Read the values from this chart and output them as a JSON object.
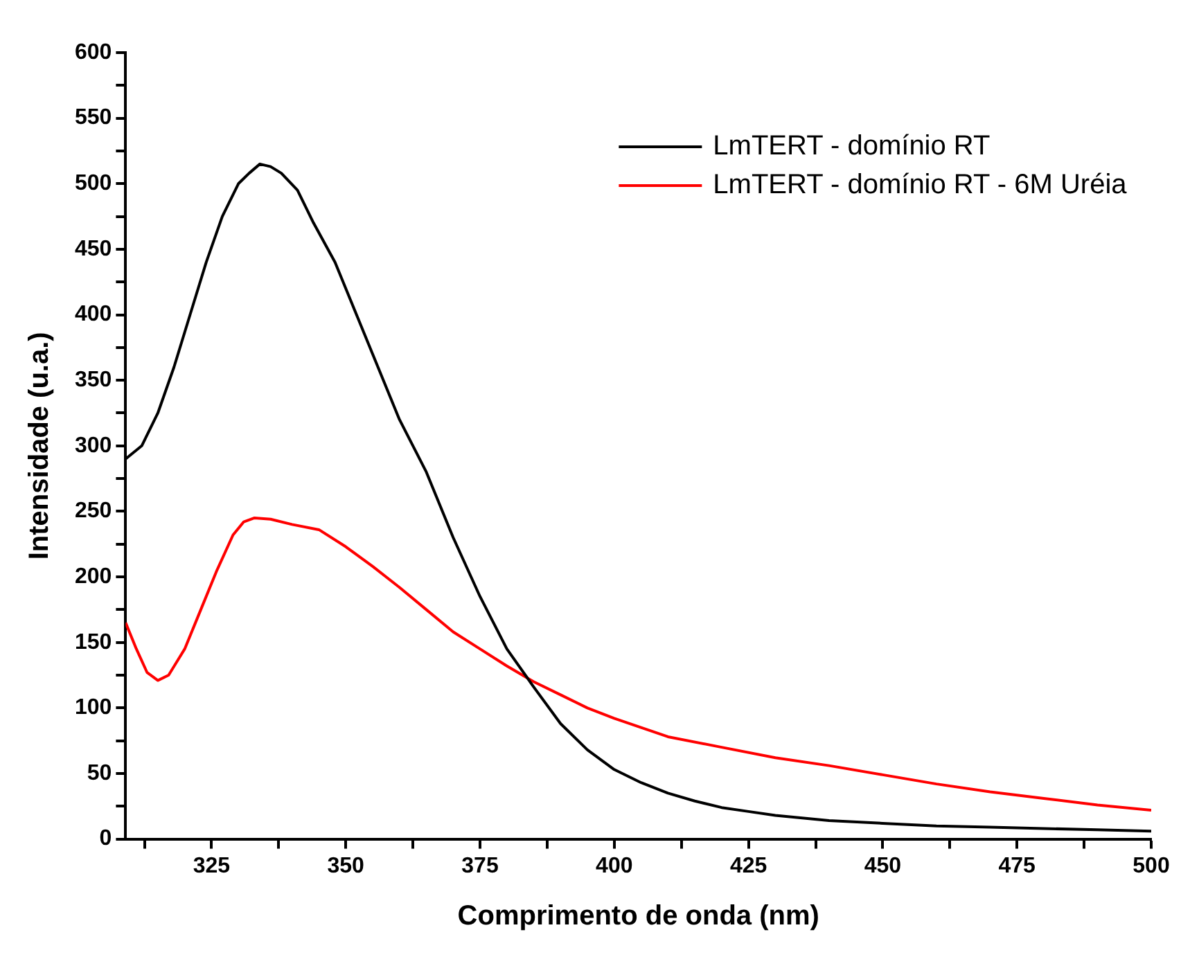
{
  "chart_data": {
    "type": "line",
    "xlabel": "Comprimento de onda (nm)",
    "ylabel": "Intensidade (u.a.)",
    "xlim": [
      309,
      500
    ],
    "ylim": [
      0,
      600
    ],
    "xticks": [
      {
        "value": 312.5,
        "label": null
      },
      325,
      {
        "value": 337.5,
        "label": null
      },
      350,
      {
        "value": 362.5,
        "label": null
      },
      375,
      {
        "value": 387.5,
        "label": null
      },
      400,
      {
        "value": 412.5,
        "label": null
      },
      425,
      {
        "value": 437.5,
        "label": null
      },
      450,
      {
        "value": 462.5,
        "label": null
      },
      475,
      {
        "value": 487.5,
        "label": null
      },
      500
    ],
    "yticks": [
      0,
      {
        "value": 25,
        "label": null
      },
      50,
      {
        "value": 75,
        "label": null
      },
      100,
      {
        "value": 125,
        "label": null
      },
      150,
      {
        "value": 175,
        "label": null
      },
      200,
      {
        "value": 225,
        "label": null
      },
      250,
      {
        "value": 275,
        "label": null
      },
      300,
      {
        "value": 325,
        "label": null
      },
      350,
      {
        "value": 375,
        "label": null
      },
      400,
      {
        "value": 425,
        "label": null
      },
      450,
      {
        "value": 475,
        "label": null
      },
      500,
      {
        "value": 525,
        "label": null
      },
      550,
      {
        "value": 575,
        "label": null
      },
      600
    ],
    "grid": false,
    "legend": "top right",
    "marker": "none",
    "line_style": "solid",
    "x": [
      309,
      312,
      315,
      318,
      321,
      324,
      327,
      330,
      332,
      334,
      336,
      338,
      341,
      344,
      348,
      352,
      356,
      360,
      365,
      370,
      375,
      380,
      385,
      390,
      395,
      400,
      405,
      410,
      415,
      420,
      425,
      430,
      435,
      440,
      450,
      460,
      470,
      480,
      490,
      500
    ],
    "series": [
      {
        "name": "LmTERT - domínio RT",
        "color": "#000000",
        "values": [
          290,
          300,
          325,
          360,
          400,
          440,
          475,
          500,
          508,
          515,
          513,
          508,
          495,
          470,
          440,
          400,
          360,
          320,
          280,
          230,
          185,
          145,
          116,
          88,
          68,
          53,
          43,
          35,
          29,
          24,
          21,
          18,
          16,
          14,
          12,
          10,
          9,
          8,
          7,
          6
        ]
      },
      {
        "name": "LmTERT - domínio RT - 6M Uréia",
        "color": "#ff0000",
        "x": [
          309,
          311,
          313,
          315,
          317,
          320,
          323,
          326,
          329,
          331,
          333,
          336,
          340,
          345,
          350,
          355,
          360,
          365,
          370,
          375,
          380,
          385,
          390,
          395,
          400,
          405,
          410,
          420,
          430,
          440,
          450,
          460,
          470,
          480,
          490,
          500
        ],
        "values": [
          165,
          145,
          127,
          121,
          125,
          145,
          175,
          205,
          232,
          242,
          245,
          244,
          240,
          236,
          223,
          208,
          192,
          175,
          158,
          145,
          132,
          120,
          110,
          100,
          92,
          85,
          78,
          70,
          62,
          56,
          49,
          42,
          36,
          31,
          26,
          22
        ]
      }
    ]
  }
}
